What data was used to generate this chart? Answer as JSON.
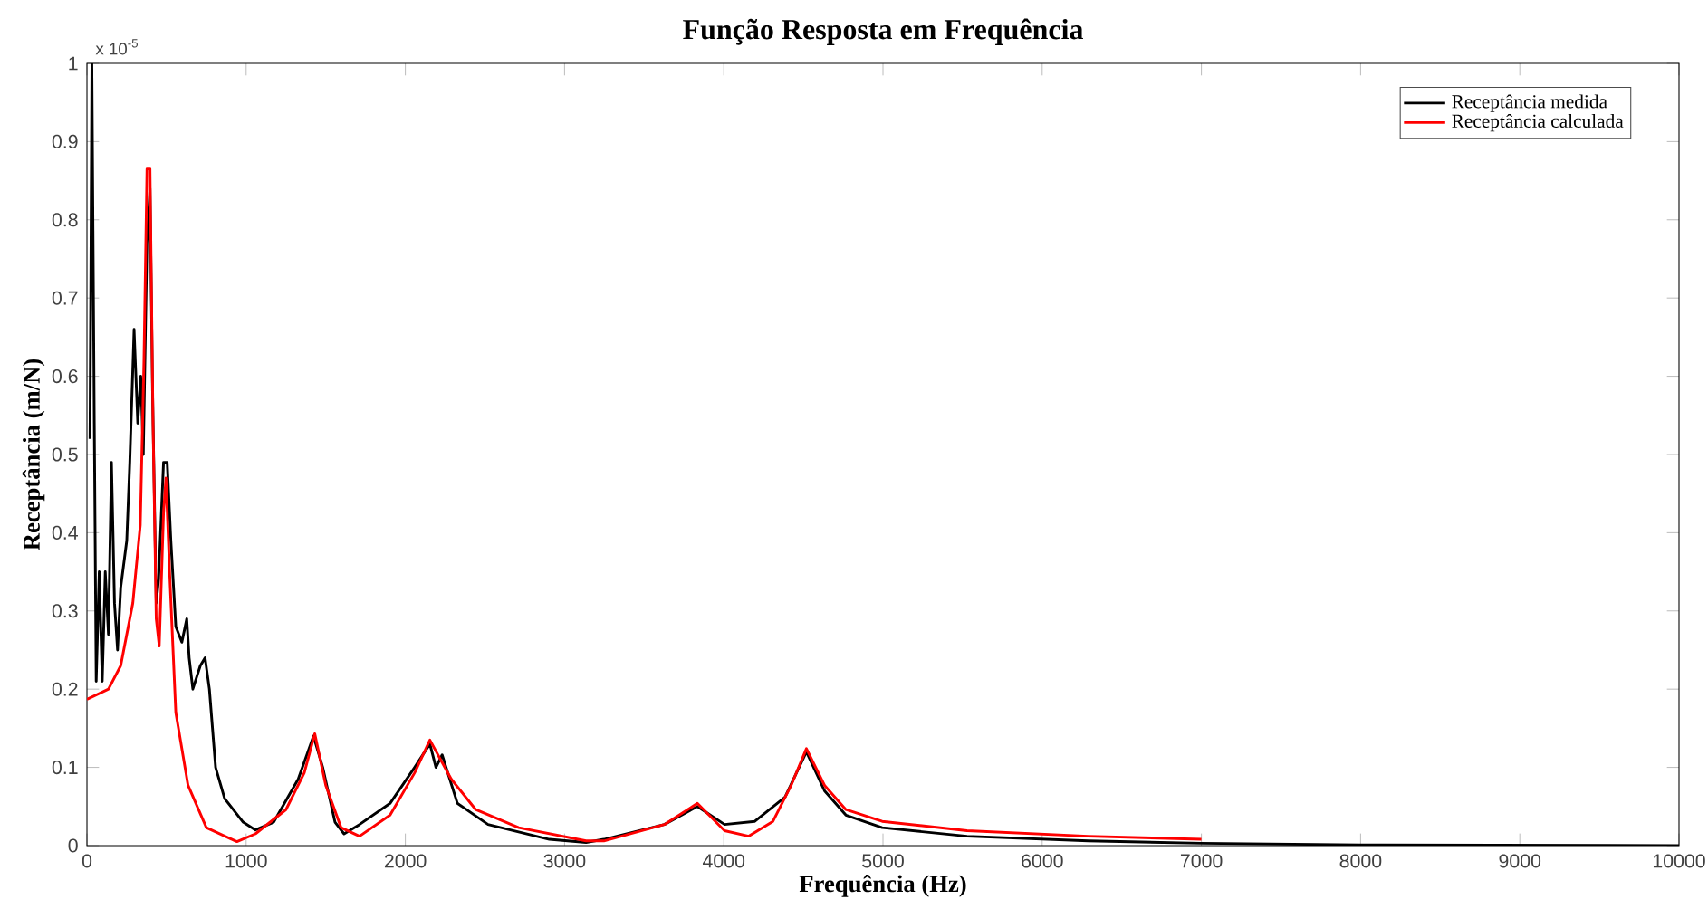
{
  "chart_data": {
    "type": "line",
    "title": "Função Resposta em Frequência",
    "xlabel": "Frequência (Hz)",
    "ylabel": "Receptância (m/N)",
    "annotations": [
      "x 10$^{-5}$"
    ],
    "xlim": [
      0,
      10000
    ],
    "ylim": [
      0,
      1
    ],
    "xticks": [
      0,
      1000,
      2000,
      3000,
      4000,
      5000,
      6000,
      7000,
      8000,
      9000,
      10000
    ],
    "yticks": [
      0,
      0.1,
      0.2,
      0.3,
      0.4,
      0.5,
      0.6,
      0.7,
      0.8,
      0.9,
      1
    ],
    "legend": "top right",
    "grid": false,
    "marker": "none",
    "line_style": "solid",
    "series": [
      {
        "name": "Receptância medida",
        "color": "#000000",
        "x": [
          19,
          31,
          46,
          58,
          77,
          96,
          115,
          135,
          154,
          173,
          192,
          212,
          250,
          269,
          296,
          319,
          338,
          354,
          377,
          396,
          412,
          435,
          450,
          481,
          504,
          527,
          558,
          596,
          627,
          642,
          665,
          712,
          742,
          769,
          808,
          865,
          981,
          1058,
          1173,
          1327,
          1423,
          1481,
          1558,
          1615,
          1712,
          1904,
          2058,
          2154,
          2192,
          2231,
          2327,
          2519,
          2904,
          3135,
          3247,
          3627,
          3834,
          4005,
          4195,
          4385,
          4519,
          4633,
          4767,
          4995,
          5528,
          6289,
          7000,
          8000,
          10000
        ],
        "values": [
          0.52,
          1.0,
          0.54,
          0.21,
          0.35,
          0.21,
          0.35,
          0.27,
          0.49,
          0.31,
          0.25,
          0.33,
          0.39,
          0.49,
          0.66,
          0.54,
          0.6,
          0.5,
          0.77,
          0.84,
          0.58,
          0.31,
          0.34,
          0.49,
          0.49,
          0.39,
          0.28,
          0.26,
          0.29,
          0.24,
          0.2,
          0.23,
          0.24,
          0.2,
          0.1,
          0.06,
          0.03,
          0.02,
          0.03,
          0.085,
          0.14,
          0.1,
          0.03,
          0.015,
          0.027,
          0.054,
          0.1,
          0.13,
          0.1,
          0.116,
          0.054,
          0.027,
          0.008,
          0.004,
          0.008,
          0.027,
          0.05,
          0.027,
          0.031,
          0.062,
          0.12,
          0.07,
          0.039,
          0.023,
          0.012,
          0.006,
          0.003,
          0.001,
          0.0
        ]
      },
      {
        "name": "Receptância calculada",
        "color": "#ff0000",
        "x": [
          0,
          135,
          212,
          288,
          335,
          358,
          377,
          396,
          415,
          435,
          454,
          481,
          496,
          519,
          558,
          635,
          750,
          942,
          1058,
          1250,
          1365,
          1431,
          1500,
          1596,
          1712,
          1904,
          2058,
          2154,
          2288,
          2442,
          2712,
          3135,
          3247,
          3627,
          3834,
          4005,
          4157,
          4309,
          4423,
          4519,
          4633,
          4767,
          4995,
          5528,
          6289,
          7000
        ],
        "values": [
          0.187,
          0.2,
          0.23,
          0.31,
          0.41,
          0.62,
          0.865,
          0.865,
          0.54,
          0.29,
          0.255,
          0.425,
          0.47,
          0.35,
          0.17,
          0.077,
          0.023,
          0.005,
          0.015,
          0.046,
          0.093,
          0.143,
          0.077,
          0.023,
          0.012,
          0.039,
          0.093,
          0.135,
          0.085,
          0.046,
          0.023,
          0.006,
          0.006,
          0.027,
          0.054,
          0.019,
          0.012,
          0.031,
          0.077,
          0.124,
          0.077,
          0.046,
          0.031,
          0.019,
          0.012,
          0.008
        ]
      }
    ]
  }
}
